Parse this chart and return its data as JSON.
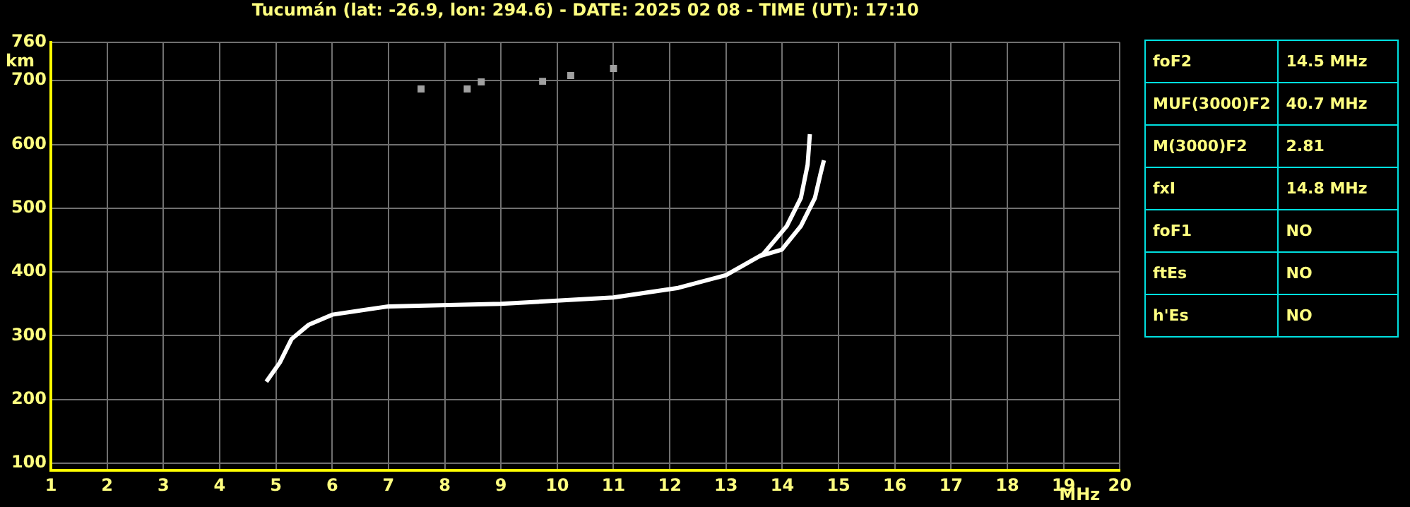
{
  "chart_data": {
    "type": "line",
    "title": "Tucumán (lat: -26.9, lon: 294.6) - DATE: 2025 02 08 - TIME (UT): 17:10",
    "xlabel": "MHz",
    "ylabel": "km",
    "xlim": [
      1,
      20
    ],
    "xticks": [
      1,
      2,
      3,
      4,
      5,
      6,
      7,
      8,
      9,
      10,
      11,
      12,
      13,
      14,
      15,
      16,
      17,
      18,
      19,
      20
    ],
    "ylim": [
      89,
      760
    ],
    "yticks": [
      100,
      200,
      300,
      400,
      500,
      600,
      700,
      760
    ],
    "grid": true,
    "marker": "none",
    "line_style": "solid",
    "series": [
      {
        "type": "line",
        "color": "#ffffff",
        "x": [
          4.83,
          5.07,
          5.28,
          5.58,
          6.0,
          7.0,
          9.0,
          11.0,
          12.15,
          13.0,
          13.66,
          14.08,
          14.33,
          14.45,
          14.49
        ],
        "values": [
          228,
          258,
          295,
          317,
          333,
          346,
          350,
          360,
          375,
          395,
          428,
          472,
          516,
          568,
          616
        ]
      },
      {
        "type": "line",
        "color": "#ffffff",
        "x": [
          13.6,
          13.99,
          14.33,
          14.58,
          14.68,
          14.74
        ],
        "values": [
          425,
          435,
          472,
          516,
          554,
          575
        ]
      },
      {
        "type": "scatter",
        "color": "#a0a0a0",
        "marker": "square",
        "x": [
          7.58,
          8.4,
          8.65,
          9.74,
          10.24,
          11.0
        ],
        "values": [
          687,
          687,
          698,
          699,
          708,
          719
        ]
      }
    ],
    "annotations": [
      "foF2",
      "14.5 MHz",
      "MUF(3000)F2",
      "40.7 MHz",
      "M(3000)F2",
      "2.81",
      "fxI",
      "14.8 MHz",
      "foF1",
      "NO",
      "ftEs",
      "NO",
      "h'Es",
      "NO"
    ]
  }
}
